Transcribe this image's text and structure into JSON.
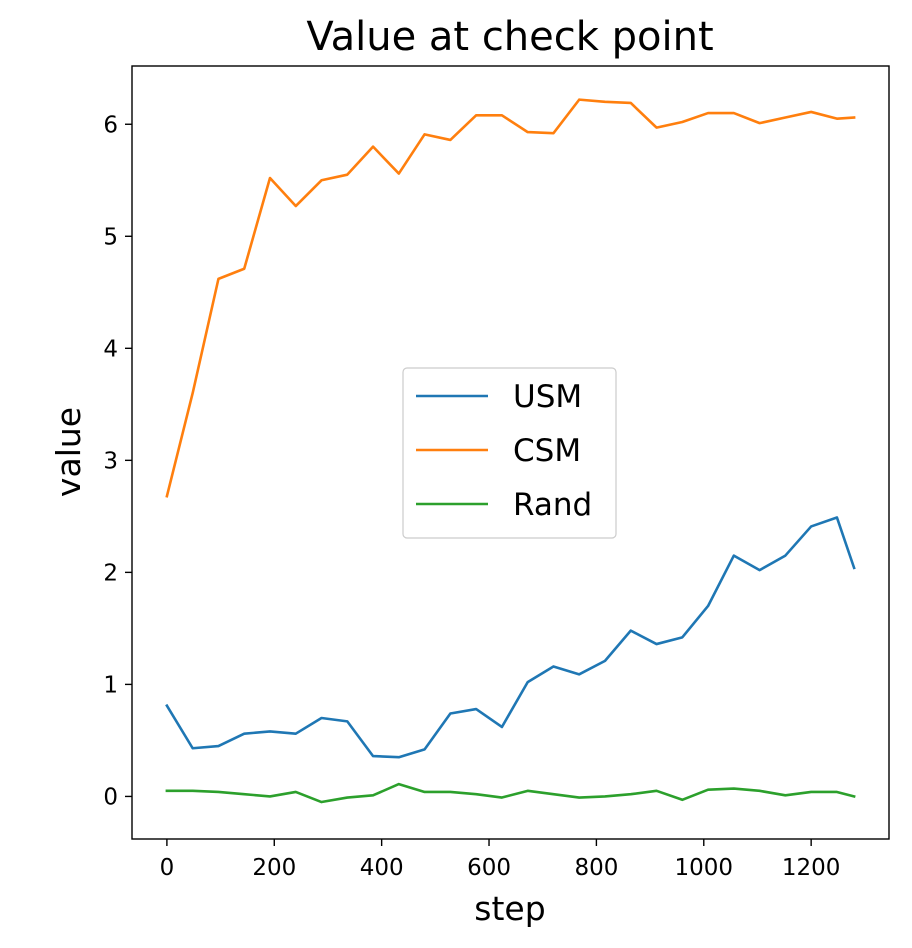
{
  "chart_data": {
    "type": "line",
    "title": "Value at check point",
    "xlabel": "step",
    "ylabel": "value",
    "xlim": [
      -65,
      1345
    ],
    "ylim": [
      -0.38,
      6.52
    ],
    "xticks": [
      0,
      200,
      400,
      600,
      800,
      1000,
      1200
    ],
    "yticks": [
      0,
      1,
      2,
      3,
      4,
      5,
      6
    ],
    "legend_position": "center",
    "grid": false,
    "x": [
      0,
      48,
      96,
      144,
      192,
      240,
      288,
      336,
      384,
      432,
      480,
      528,
      576,
      624,
      672,
      720,
      768,
      816,
      864,
      912,
      960,
      1008,
      1056,
      1104,
      1152,
      1200,
      1248,
      1280
    ],
    "series": [
      {
        "name": "USM",
        "color": "#1f77b4",
        "values": [
          0.81,
          0.43,
          0.45,
          0.56,
          0.58,
          0.56,
          0.7,
          0.67,
          0.36,
          0.35,
          0.42,
          0.74,
          0.78,
          0.62,
          1.02,
          1.16,
          1.09,
          1.21,
          1.48,
          1.36,
          1.42,
          1.7,
          2.15,
          2.02,
          2.15,
          2.41,
          2.49,
          2.04
        ]
      },
      {
        "name": "CSM",
        "color": "#ff7f0e",
        "values": [
          2.68,
          3.6,
          4.62,
          4.71,
          5.52,
          5.27,
          5.5,
          5.55,
          5.8,
          5.56,
          5.91,
          5.86,
          6.08,
          6.08,
          5.93,
          5.92,
          6.22,
          6.2,
          6.19,
          5.97,
          6.02,
          6.1,
          6.1,
          6.01,
          6.06,
          6.11,
          6.05,
          6.06
        ]
      },
      {
        "name": "Rand",
        "color": "#2ca02c",
        "values": [
          0.05,
          0.05,
          0.04,
          0.02,
          0.0,
          0.04,
          -0.05,
          -0.01,
          0.01,
          0.11,
          0.04,
          0.04,
          0.02,
          -0.01,
          0.05,
          0.02,
          -0.01,
          0.0,
          0.02,
          0.05,
          -0.03,
          0.06,
          0.07,
          0.05,
          0.01,
          0.04,
          0.04,
          0.0
        ]
      }
    ]
  }
}
